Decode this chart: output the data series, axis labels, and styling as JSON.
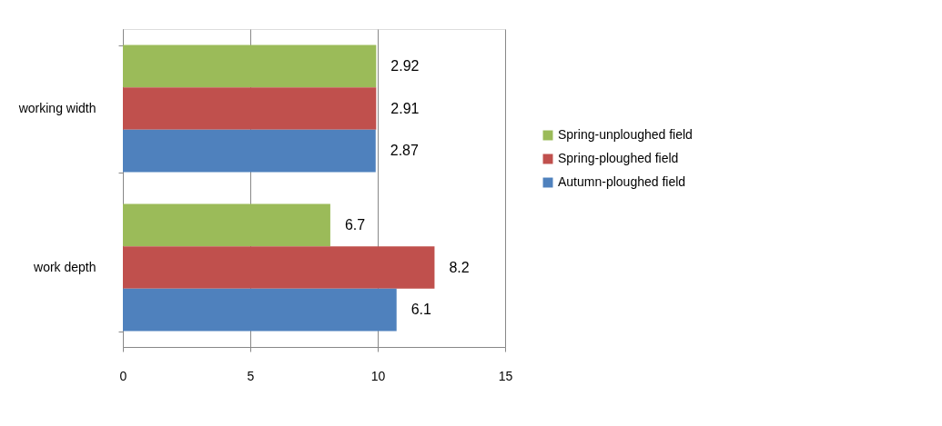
{
  "chart_data": {
    "type": "bar",
    "orientation": "horizontal",
    "categories": [
      "working width",
      "work depth"
    ],
    "series": [
      {
        "name": "Spring-unploughed field",
        "color": "#9bbb59",
        "values": [
          9.94,
          8.14
        ]
      },
      {
        "name": "Spring-ploughed field",
        "color": "#c0504d",
        "values": [
          9.94,
          12.23
        ]
      },
      {
        "name": "Autumn-ploughed field",
        "color": "#4f81bd",
        "values": [
          9.92,
          10.74
        ]
      }
    ],
    "annotations": [
      "2.92",
      "6.7",
      "2.91",
      "8.2",
      "2.87",
      "6.1"
    ],
    "xlim": [
      0,
      15
    ],
    "xticks": [
      0,
      5,
      10,
      15
    ],
    "grid": "x",
    "legend": "right"
  }
}
